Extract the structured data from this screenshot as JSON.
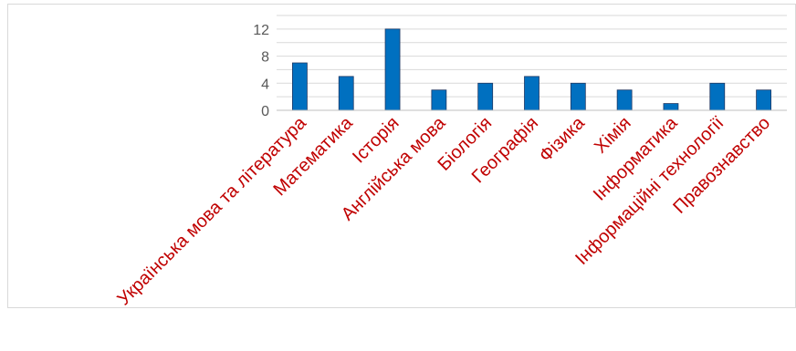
{
  "chart_data": {
    "type": "bar",
    "categories": [
      "Українська мова та література",
      "Математика",
      "Історія",
      "Англійська мова",
      "Біологія",
      "Географія",
      "Фізика",
      "Хімія",
      "Інформатика",
      "Інформаційні технології",
      "Правознавство"
    ],
    "series": [
      {
        "values": [
          7,
          5,
          12,
          3,
          4,
          5,
          4,
          3,
          1,
          4,
          3
        ]
      }
    ],
    "y_ticks": [
      "0",
      "4",
      "8",
      "12"
    ],
    "ylim": [
      0,
      14
    ],
    "grid": true,
    "legend": "none",
    "colors": {
      "bar_fill": "#0070c0",
      "bar_stroke": "#1f3864",
      "category_label": "#c00000",
      "tick_label": "#595959",
      "gridline": "#d9d9d9",
      "axis": "#bfbfbf"
    }
  }
}
